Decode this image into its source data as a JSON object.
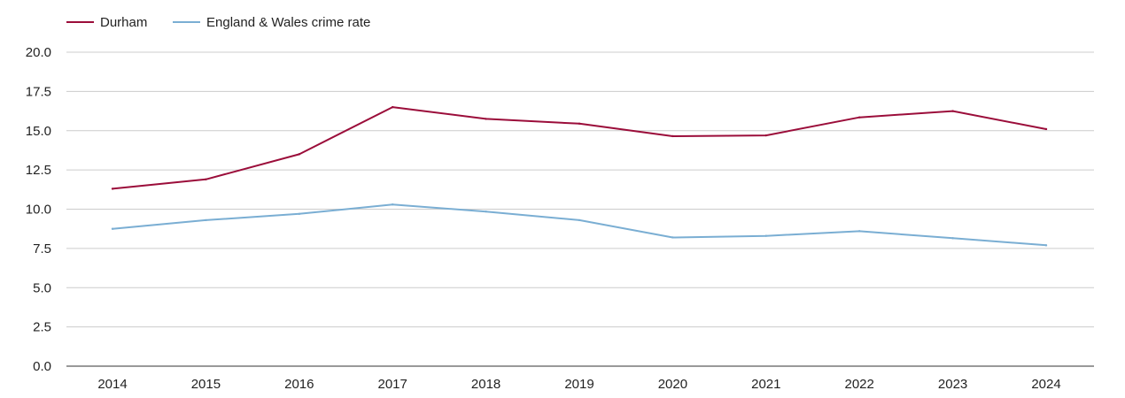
{
  "chart_data": {
    "type": "line",
    "title": "",
    "xlabel": "",
    "ylabel": "",
    "categories": [
      "2014",
      "2015",
      "2016",
      "2017",
      "2018",
      "2019",
      "2020",
      "2021",
      "2022",
      "2023",
      "2024"
    ],
    "ylim": [
      0,
      20
    ],
    "yticks": [
      "0.0",
      "2.5",
      "5.0",
      "7.5",
      "10.0",
      "12.5",
      "15.0",
      "17.5",
      "20.0"
    ],
    "grid": true,
    "legend_position": "top-left",
    "series": [
      {
        "name": "Durham",
        "color": "#9b0d3a",
        "values": [
          11.3,
          11.9,
          13.5,
          16.5,
          15.75,
          15.45,
          14.65,
          14.7,
          15.85,
          16.25,
          15.1
        ]
      },
      {
        "name": "England & Wales crime rate",
        "color": "#7aaed3",
        "values": [
          8.75,
          9.3,
          9.7,
          10.3,
          9.85,
          9.3,
          8.2,
          8.3,
          8.6,
          8.15,
          7.7
        ]
      }
    ]
  }
}
